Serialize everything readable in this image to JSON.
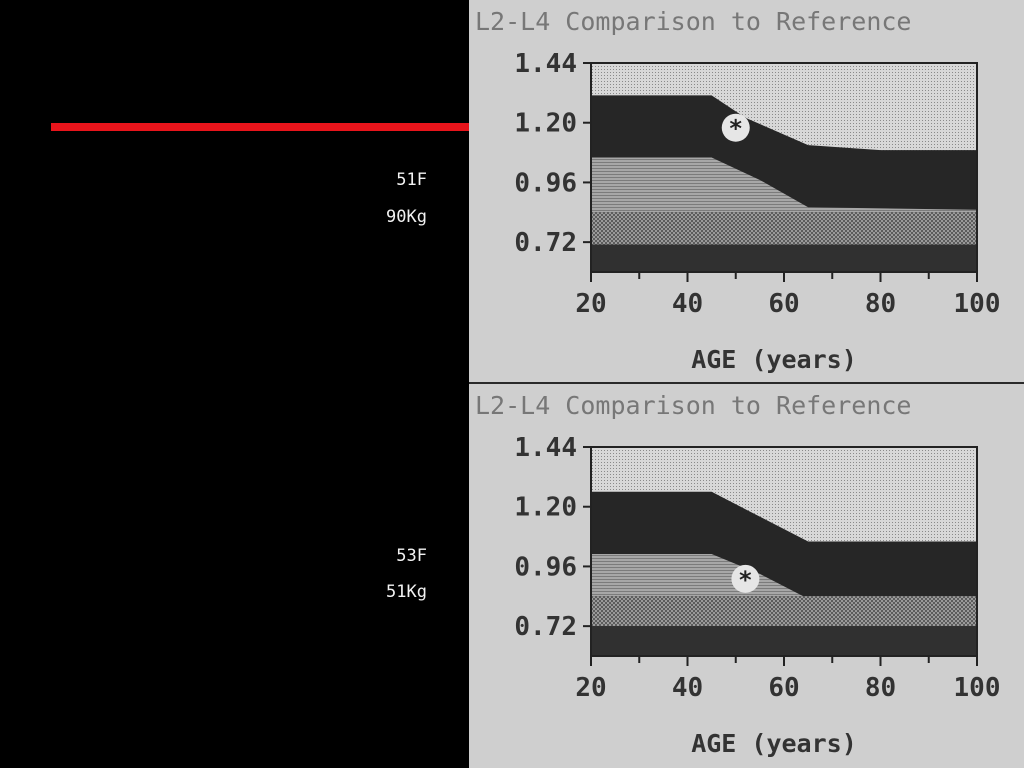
{
  "patients": [
    {
      "sex_age": "51F",
      "weight": "90Kg"
    },
    {
      "sex_age": "53F",
      "weight": "51Kg"
    }
  ],
  "colors": {
    "background": "#000000",
    "marker_line": "#e8141b",
    "label_text": "#f2f2f2",
    "panel_bg": "#cfcfcf",
    "band_dark": "#262626",
    "band_light_pattern": "#d9d9d9"
  },
  "chart_data": [
    {
      "type": "area",
      "title": "L2-L4 Comparison to Reference",
      "xlabel": "AGE (years)",
      "ylabel": "",
      "x_ticks": [
        20,
        40,
        60,
        80,
        100
      ],
      "y_ticks": [
        1.44,
        1.2,
        0.96,
        0.72
      ],
      "xlim": [
        20,
        100
      ],
      "ylim": [
        0.6,
        1.44
      ],
      "reference_bands": {
        "upper": {
          "x": [
            20,
            45,
            52,
            65,
            80,
            100
          ],
          "y": [
            1.31,
            1.31,
            1.22,
            1.11,
            1.09,
            1.09
          ]
        },
        "mean_minus_2sd": {
          "x": [
            20,
            45,
            55,
            65,
            100
          ],
          "y": [
            1.06,
            1.06,
            0.97,
            0.86,
            0.85
          ]
        },
        "lower_pattern_top": 0.84,
        "lower_pattern_bottom": 0.71
      },
      "patient_point": {
        "age": 50,
        "bmd": 1.18
      }
    },
    {
      "type": "area",
      "title": "L2-L4 Comparison to Reference",
      "xlabel": "AGE (years)",
      "ylabel": "",
      "x_ticks": [
        20,
        40,
        60,
        80,
        100
      ],
      "y_ticks": [
        1.44,
        1.2,
        0.96,
        0.72
      ],
      "xlim": [
        20,
        100
      ],
      "ylim": [
        0.6,
        1.44
      ],
      "reference_bands": {
        "upper": {
          "x": [
            20,
            45,
            52,
            65,
            80,
            100
          ],
          "y": [
            1.26,
            1.26,
            1.19,
            1.06,
            1.06,
            1.06
          ]
        },
        "mean_minus_2sd": {
          "x": [
            20,
            45,
            55,
            65,
            100
          ],
          "y": [
            1.01,
            1.01,
            0.93,
            0.83,
            0.79
          ]
        },
        "lower_pattern_top": 0.84,
        "lower_pattern_bottom": 0.72
      },
      "patient_point": {
        "age": 52,
        "bmd": 0.91
      }
    }
  ]
}
